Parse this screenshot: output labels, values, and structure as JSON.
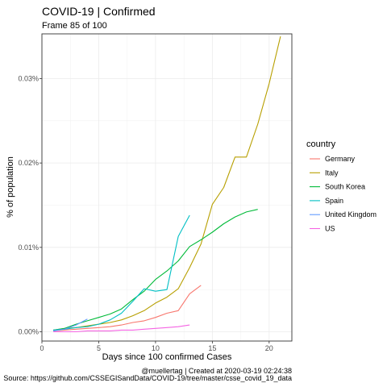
{
  "chart_data": {
    "type": "line",
    "title": "COVID-19 | Confirmed",
    "subtitle": "Frame 85 of 100",
    "xlabel": "Days since 100 confirmed Cases",
    "ylabel": "% of population",
    "xlim": [
      0,
      22
    ],
    "ylim": [
      -0.0011,
      0.0353
    ],
    "x_ticks": [
      0,
      5,
      10,
      15,
      20
    ],
    "y_ticks": [
      0,
      0.01,
      0.02,
      0.03
    ],
    "y_tick_labels": [
      "0.00%",
      "0.01%",
      "0.02%",
      "0.03%"
    ],
    "grid": true,
    "legend": {
      "title": "country",
      "position": "right"
    },
    "caption_line1": "@muellertag | Created at  2020-03-19 02:24:38",
    "caption_line2": "Source: https://github.com/CSSEGISandData/COVID-19/tree/master/csse_covid_19_data",
    "series": [
      {
        "name": "Germany",
        "color": "#F8766D",
        "x": [
          1,
          2,
          3,
          4,
          5,
          6,
          7,
          8,
          9,
          10,
          11,
          12,
          13,
          14
        ],
        "y": [
          0.0001,
          0.0002,
          0.0003,
          0.0004,
          0.0005,
          0.0006,
          0.0008,
          0.0011,
          0.0013,
          0.0017,
          0.0022,
          0.0025,
          0.0045,
          0.0055
        ]
      },
      {
        "name": "Italy",
        "color": "#B79F00",
        "x": [
          1,
          2,
          3,
          4,
          5,
          6,
          7,
          8,
          9,
          10,
          11,
          12,
          13,
          14,
          15,
          16,
          17,
          18,
          19,
          20,
          21
        ],
        "y": [
          0.0002,
          0.0004,
          0.0005,
          0.0007,
          0.0009,
          0.0011,
          0.0014,
          0.0019,
          0.0025,
          0.0034,
          0.0041,
          0.0051,
          0.0076,
          0.0104,
          0.0151,
          0.0171,
          0.0207,
          0.0207,
          0.0246,
          0.0294,
          0.035
        ]
      },
      {
        "name": "South Korea",
        "color": "#00BA38",
        "x": [
          1,
          2,
          3,
          4,
          5,
          6,
          7,
          8,
          9,
          10,
          11,
          12,
          13,
          14,
          15,
          16,
          17,
          18,
          19
        ],
        "y": [
          0.0002,
          0.0004,
          0.0009,
          0.0013,
          0.0017,
          0.0021,
          0.0027,
          0.0038,
          0.0048,
          0.0062,
          0.0072,
          0.0084,
          0.0101,
          0.0109,
          0.0118,
          0.0128,
          0.0136,
          0.0142,
          0.0145
        ]
      },
      {
        "name": "Spain",
        "color": "#00BFC4",
        "x": [
          1,
          2,
          3,
          4,
          5,
          6,
          7,
          8,
          9,
          10,
          11,
          12,
          13
        ],
        "y": [
          0.0002,
          0.0003,
          0.0005,
          0.0006,
          0.0009,
          0.0014,
          0.0022,
          0.0036,
          0.0051,
          0.0048,
          0.005,
          0.0113,
          0.0138
        ]
      },
      {
        "name": "United Kingdom",
        "color": "#619CFF",
        "x": [
          1,
          2,
          3,
          4
        ],
        "y": [
          0.0001,
          0.0003,
          0.0008,
          0.0015
        ]
      },
      {
        "name": "US",
        "color": "#F564E3",
        "x": [
          1,
          2,
          3,
          4,
          5,
          6,
          7,
          8,
          9,
          10,
          11,
          12,
          13
        ],
        "y": [
          0.0,
          0.0,
          0.0,
          0.0001,
          0.0001,
          0.0001,
          0.0002,
          0.0002,
          0.0003,
          0.0004,
          0.0005,
          0.0006,
          0.0008
        ]
      }
    ]
  }
}
